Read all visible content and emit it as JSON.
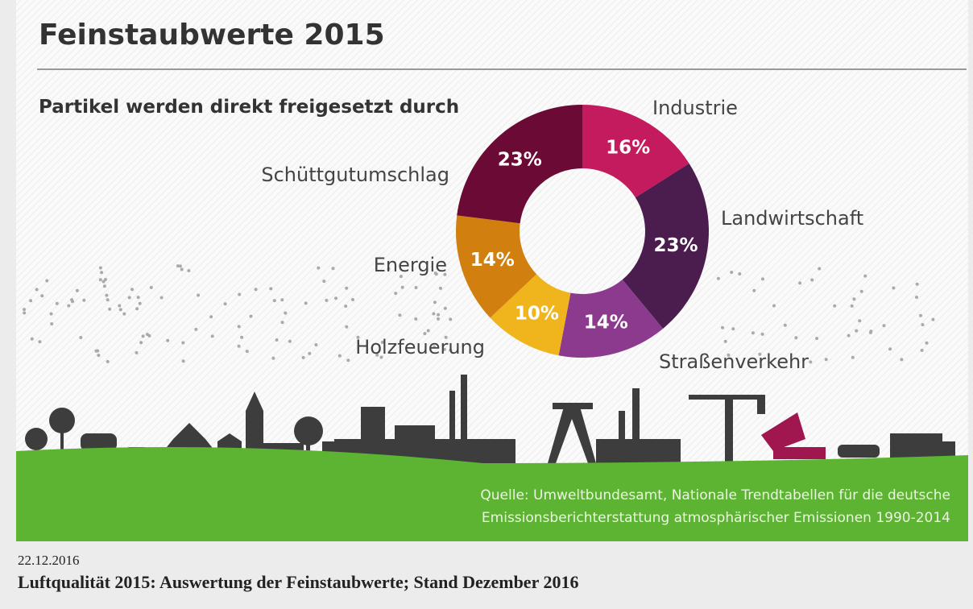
{
  "chart_data": {
    "type": "donut",
    "title": "Feinstaubwerte 2015",
    "subtitle": "Partikel werden direkt freigesetzt durch",
    "categories": [
      "Industrie",
      "Landwirtschaft",
      "Straßenverkehr",
      "Holzfeuerung",
      "Energie",
      "Schüttgutumschlag"
    ],
    "values": [
      16,
      23,
      14,
      10,
      14,
      23
    ],
    "value_labels": [
      "16%",
      "23%",
      "14%",
      "10%",
      "14%",
      "23%"
    ],
    "colors": [
      "#c41a5e",
      "#4b1d4f",
      "#8c3a8e",
      "#f0b51d",
      "#d1800f",
      "#6a0a35"
    ],
    "source": [
      "Quelle: Umweltbundesamt, Nationale Trendtabellen für die deutsche",
      "Emissionsberichterstattung atmosphärischer Emissionen 1990-2014"
    ]
  },
  "date": "22.12.2016",
  "caption": "Luftqualität 2015: Auswertung der Feinstaubwerte; Stand Dezember 2016"
}
